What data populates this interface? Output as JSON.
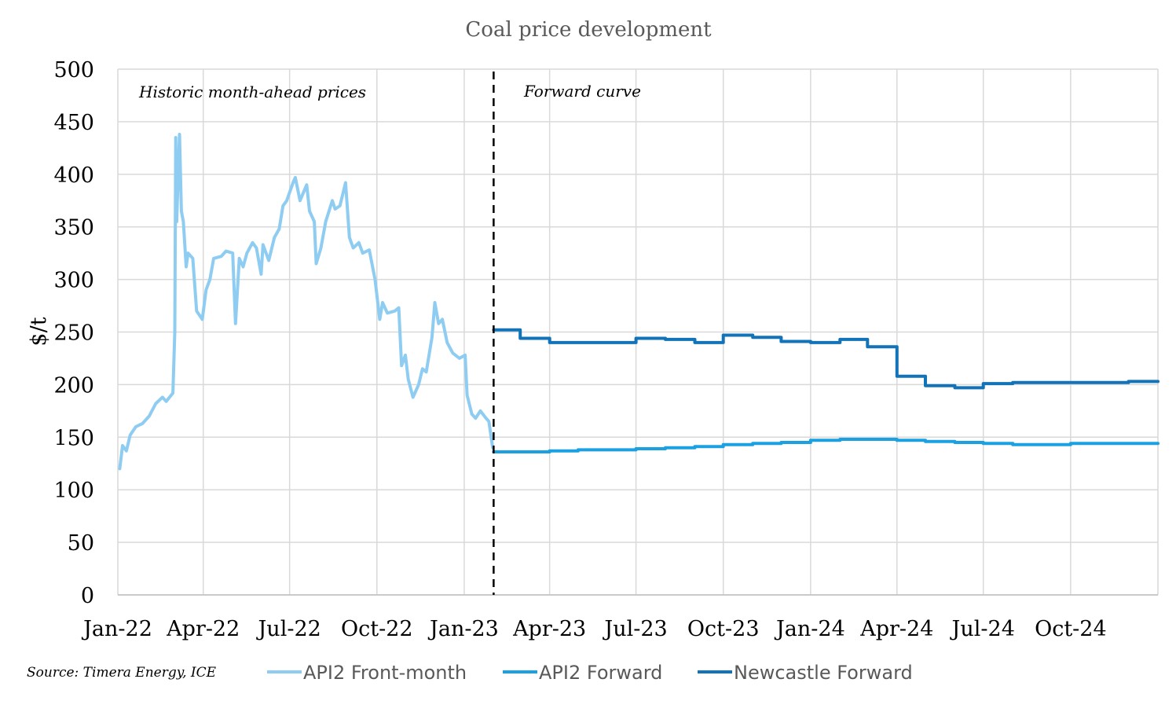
{
  "chart_data": {
    "type": "line",
    "title": "Coal price development",
    "xlabel": "",
    "ylabel": "$/t",
    "ylim": [
      0,
      500
    ],
    "yticks": [
      "0",
      "50",
      "100",
      "150",
      "200",
      "250",
      "300",
      "350",
      "400",
      "450",
      "500"
    ],
    "xlim": [
      "2022-01-01",
      "2025-01-01"
    ],
    "xticks": [
      {
        "date": "2022-01-01",
        "label": "Jan-22"
      },
      {
        "date": "2022-04-01",
        "label": "Apr-22"
      },
      {
        "date": "2022-07-01",
        "label": "Jul-22"
      },
      {
        "date": "2022-10-01",
        "label": "Oct-22"
      },
      {
        "date": "2023-01-01",
        "label": "Jan-23"
      },
      {
        "date": "2023-04-01",
        "label": "Apr-23"
      },
      {
        "date": "2023-07-01",
        "label": "Jul-23"
      },
      {
        "date": "2023-10-01",
        "label": "Oct-23"
      },
      {
        "date": "2024-01-01",
        "label": "Jan-24"
      },
      {
        "date": "2024-04-01",
        "label": "Apr-24"
      },
      {
        "date": "2024-07-01",
        "label": "Jul-24"
      },
      {
        "date": "2024-10-01",
        "label": "Oct-24"
      }
    ],
    "grid": true,
    "legend": "bottom",
    "divider": {
      "date": "2023-02-01",
      "style": "dashed",
      "color": "#000000"
    },
    "annotations": {
      "historic": "Historic month-ahead prices",
      "forward": "Forward curve"
    },
    "source": "Source: Timera Energy, ICE",
    "series": [
      {
        "name": "API2 Front-month",
        "color": "#8ecdf1",
        "step": false,
        "points": [
          [
            "2022-01-03",
            120
          ],
          [
            "2022-01-06",
            142
          ],
          [
            "2022-01-10",
            137
          ],
          [
            "2022-01-14",
            152
          ],
          [
            "2022-01-20",
            160
          ],
          [
            "2022-01-27",
            163
          ],
          [
            "2022-02-03",
            170
          ],
          [
            "2022-02-10",
            182
          ],
          [
            "2022-02-17",
            188
          ],
          [
            "2022-02-21",
            184
          ],
          [
            "2022-02-28",
            192
          ],
          [
            "2022-03-02",
            250
          ],
          [
            "2022-03-03",
            435
          ],
          [
            "2022-03-04",
            355
          ],
          [
            "2022-03-07",
            438
          ],
          [
            "2022-03-09",
            365
          ],
          [
            "2022-03-11",
            355
          ],
          [
            "2022-03-14",
            312
          ],
          [
            "2022-03-16",
            325
          ],
          [
            "2022-03-21",
            320
          ],
          [
            "2022-03-25",
            270
          ],
          [
            "2022-03-31",
            262
          ],
          [
            "2022-04-04",
            290
          ],
          [
            "2022-04-08",
            300
          ],
          [
            "2022-04-12",
            320
          ],
          [
            "2022-04-20",
            322
          ],
          [
            "2022-04-25",
            327
          ],
          [
            "2022-05-02",
            325
          ],
          [
            "2022-05-05",
            258
          ],
          [
            "2022-05-09",
            320
          ],
          [
            "2022-05-13",
            312
          ],
          [
            "2022-05-17",
            325
          ],
          [
            "2022-05-23",
            335
          ],
          [
            "2022-05-27",
            330
          ],
          [
            "2022-06-01",
            305
          ],
          [
            "2022-06-03",
            333
          ],
          [
            "2022-06-09",
            318
          ],
          [
            "2022-06-15",
            340
          ],
          [
            "2022-06-20",
            348
          ],
          [
            "2022-06-24",
            370
          ],
          [
            "2022-06-28",
            375
          ],
          [
            "2022-07-05",
            393
          ],
          [
            "2022-07-07",
            397
          ],
          [
            "2022-07-12",
            375
          ],
          [
            "2022-07-19",
            390
          ],
          [
            "2022-07-22",
            365
          ],
          [
            "2022-07-27",
            355
          ],
          [
            "2022-07-29",
            315
          ],
          [
            "2022-08-03",
            330
          ],
          [
            "2022-08-08",
            355
          ],
          [
            "2022-08-15",
            375
          ],
          [
            "2022-08-18",
            367
          ],
          [
            "2022-08-23",
            370
          ],
          [
            "2022-08-29",
            392
          ],
          [
            "2022-09-02",
            340
          ],
          [
            "2022-09-06",
            330
          ],
          [
            "2022-09-12",
            335
          ],
          [
            "2022-09-16",
            325
          ],
          [
            "2022-09-23",
            328
          ],
          [
            "2022-09-29",
            300
          ],
          [
            "2022-10-04",
            262
          ],
          [
            "2022-10-07",
            278
          ],
          [
            "2022-10-12",
            268
          ],
          [
            "2022-10-20",
            270
          ],
          [
            "2022-10-24",
            273
          ],
          [
            "2022-10-27",
            218
          ],
          [
            "2022-10-31",
            228
          ],
          [
            "2022-11-03",
            205
          ],
          [
            "2022-11-08",
            188
          ],
          [
            "2022-11-14",
            200
          ],
          [
            "2022-11-18",
            215
          ],
          [
            "2022-11-22",
            212
          ],
          [
            "2022-11-28",
            245
          ],
          [
            "2022-12-01",
            278
          ],
          [
            "2022-12-05",
            258
          ],
          [
            "2022-12-09",
            262
          ],
          [
            "2022-12-14",
            240
          ],
          [
            "2022-12-20",
            230
          ],
          [
            "2022-12-27",
            225
          ],
          [
            "2023-01-02",
            228
          ],
          [
            "2023-01-04",
            190
          ],
          [
            "2023-01-09",
            172
          ],
          [
            "2023-01-13",
            168
          ],
          [
            "2023-01-18",
            175
          ],
          [
            "2023-01-24",
            168
          ],
          [
            "2023-01-27",
            165
          ],
          [
            "2023-01-31",
            140
          ]
        ]
      },
      {
        "name": "API2 Forward",
        "color": "#1ba1e2",
        "step": true,
        "start": "2023-02",
        "end": "2025-01",
        "values": [
          136,
          136,
          137,
          138,
          138,
          139,
          140,
          141,
          143,
          144,
          145,
          147,
          148,
          148,
          147,
          146,
          145,
          144,
          143,
          143,
          144,
          144,
          144
        ]
      },
      {
        "name": "Newcastle Forward",
        "color": "#1273b8",
        "step": true,
        "start": "2023-02",
        "end": "2025-01",
        "values": [
          252,
          244,
          240,
          240,
          240,
          244,
          243,
          240,
          247,
          245,
          241,
          240,
          243,
          236,
          208,
          199,
          197,
          201,
          202,
          202,
          202,
          202,
          203
        ]
      }
    ]
  }
}
